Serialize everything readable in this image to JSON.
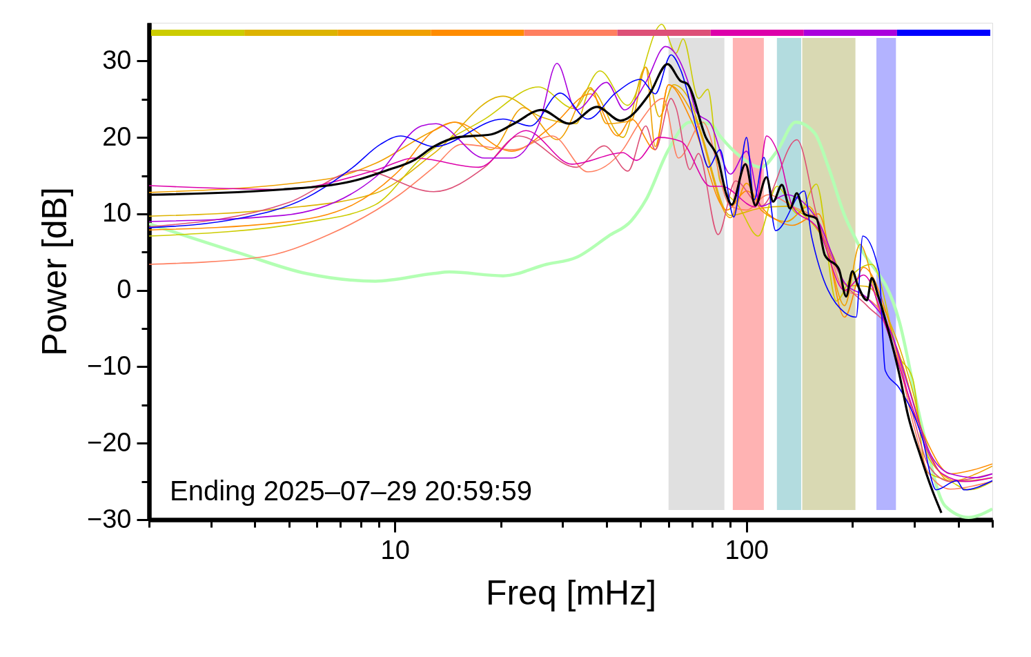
{
  "chart_data": {
    "type": "line",
    "xlabel": "Freq [mHz]",
    "ylabel": "Power [dB]",
    "log": "x",
    "xlim": [
      2,
      500
    ],
    "ylim": [
      -30,
      35
    ],
    "xticks": [
      {
        "value": 2,
        "label": null
      },
      {
        "value": 3,
        "label": null
      },
      {
        "value": 4,
        "label": null
      },
      {
        "value": 5,
        "label": null
      },
      {
        "value": 6,
        "label": null
      },
      {
        "value": 7,
        "label": null
      },
      {
        "value": 8,
        "label": null
      },
      {
        "value": 9,
        "label": null
      },
      10,
      {
        "value": 20,
        "label": null
      },
      {
        "value": 30,
        "label": null
      },
      {
        "value": 40,
        "label": null
      },
      {
        "value": 50,
        "label": null
      },
      {
        "value": 60,
        "label": null
      },
      {
        "value": 70,
        "label": null
      },
      {
        "value": 80,
        "label": null
      },
      {
        "value": 90,
        "label": null
      },
      100,
      {
        "value": 200,
        "label": null
      },
      {
        "value": 300,
        "label": null
      },
      {
        "value": 400,
        "label": null
      },
      {
        "value": 500,
        "label": null
      }
    ],
    "yticks": [
      {
        "value": -30,
        "label": "−30"
      },
      {
        "value": -25,
        "label": null
      },
      {
        "value": -20,
        "label": "−20"
      },
      {
        "value": -15,
        "label": null
      },
      {
        "value": -10,
        "label": "−10"
      },
      {
        "value": -5,
        "label": null
      },
      0,
      {
        "value": 5,
        "label": null
      },
      10,
      {
        "value": 15,
        "label": null
      },
      20,
      {
        "value": 25,
        "label": null
      },
      30
    ],
    "grid": false,
    "marker": "none",
    "line_style": "solid",
    "annotations": [
      "Ending 2025–07–29 20:59:59"
    ],
    "bands": [
      {
        "axis": "x",
        "from": 60,
        "to": 86.5,
        "color": "#e0e0e0"
      },
      {
        "axis": "x",
        "from": 91.4,
        "to": 112,
        "color": "#ffb3b3"
      },
      {
        "axis": "x",
        "from": 122,
        "to": 143,
        "color": "#b3dcdf"
      },
      {
        "axis": "x",
        "from": 144,
        "to": 204,
        "color": "#d9d9b3"
      },
      {
        "axis": "x",
        "from": 234,
        "to": 266,
        "color": "#b3b3ff"
      }
    ],
    "series": [
      {
        "color": "#b3ffb3",
        "x": [
          2,
          3.6,
          5.6,
          8.8,
          12.9,
          14.3,
          20.3,
          27,
          32.8,
          40.5,
          47,
          51.7,
          60,
          69,
          79,
          84,
          96,
          110,
          122,
          138,
          156,
          171,
          190,
          207,
          272,
          315,
          367,
          428,
          500
        ],
        "values": [
          8.7,
          4.9,
          2.2,
          1.2,
          2.2,
          2.4,
          1.9,
          3.4,
          4.3,
          7.1,
          9.1,
          11.8,
          18.4,
          22,
          21.8,
          20.2,
          17.5,
          16.1,
          18.2,
          22,
          20.6,
          16.1,
          9.8,
          6.2,
          -4.1,
          -17.7,
          -28.2,
          -29.7,
          -28.6
        ]
      },
      {
        "color": "#cccc00",
        "x": [
          2,
          5.6,
          8.8,
          11.9,
          18,
          25.6,
          32.3,
          38.3,
          45.9,
          57.4,
          63,
          66,
          73,
          77.6,
          84,
          95,
          108,
          122,
          140,
          158,
          180,
          200,
          227,
          272,
          297,
          325,
          380,
          428,
          500
        ],
        "values": [
          7.1,
          8.9,
          11.2,
          17.3,
          22.4,
          26.6,
          23.8,
          28.7,
          24.2,
          34.8,
          31,
          32.9,
          25.1,
          26.3,
          14.3,
          11,
          7.1,
          13.6,
          10,
          13.9,
          -1.4,
          2,
          3.4,
          -8.7,
          -11.6,
          -23.7,
          -25,
          -26.1,
          -25
        ]
      },
      {
        "color": "#ddb300",
        "x": [
          2,
          4.8,
          8.8,
          12.9,
          20.3,
          26,
          32.8,
          36,
          44.5,
          51.7,
          56.5,
          62,
          69,
          74,
          90,
          108,
          130,
          146,
          176,
          192,
          220,
          260,
          300,
          330,
          400,
          500
        ],
        "values": [
          9.7,
          10.7,
          12.7,
          17.9,
          25.4,
          22.7,
          21.8,
          26.3,
          20,
          29.2,
          22.7,
          26.9,
          24.8,
          20.9,
          9.8,
          10.7,
          11,
          9.8,
          4.6,
          0.7,
          0.5,
          -5,
          -14,
          -22,
          -25,
          -24.5
        ]
      },
      {
        "color": "#f0a000",
        "x": [
          2,
          6.5,
          8.8,
          12.9,
          14.8,
          18.8,
          23.2,
          29,
          36,
          40,
          47,
          51.7,
          55,
          60,
          71,
          90,
          100,
          110,
          130,
          150,
          170,
          190,
          210,
          240,
          270,
          300,
          330,
          380,
          450,
          500
        ],
        "values": [
          12.8,
          14.6,
          16.6,
          20.9,
          22,
          18.4,
          23.9,
          19.7,
          26.5,
          21.8,
          22.2,
          29.2,
          18.8,
          26.9,
          22.7,
          9.5,
          14,
          10.5,
          9,
          11,
          5,
          -2,
          6,
          -3,
          -8,
          -15,
          -21,
          -25,
          -24,
          -23
        ]
      },
      {
        "color": "#ff8c00",
        "x": [
          2,
          4.8,
          7.6,
          10.3,
          12.9,
          14.8,
          21.5,
          28,
          36,
          43,
          47,
          55,
          60,
          70,
          88,
          100,
          115,
          135,
          160,
          190,
          215,
          250,
          280,
          320,
          380,
          440,
          500
        ],
        "values": [
          7.9,
          8.9,
          11.2,
          15.7,
          20.9,
          22,
          18.2,
          21.5,
          25.7,
          20.2,
          22.4,
          18.4,
          26.9,
          22,
          10.5,
          13,
          10,
          8.5,
          10,
          -3.5,
          3,
          -3,
          -12,
          -19,
          -24,
          -23.5,
          -22.7
        ]
      },
      {
        "color": "#ff7f60",
        "x": [
          2,
          4.1,
          6.5,
          10.3,
          12.9,
          15.5,
          21.8,
          28,
          35.4,
          44.5,
          49.4,
          58,
          64,
          75,
          90,
          100,
          115,
          135,
          160,
          190,
          220,
          260,
          300,
          330,
          380,
          450,
          500
        ],
        "values": [
          3.4,
          4.3,
          7.3,
          12.5,
          16.1,
          19.1,
          18.4,
          20.2,
          15.5,
          18.4,
          21.8,
          25.1,
          17.3,
          22,
          11,
          10.5,
          12.5,
          11,
          9,
          0,
          -1,
          -6,
          -18,
          -24,
          -26,
          -25.5,
          -25
        ]
      },
      {
        "color": "#dd5077",
        "x": [
          2,
          5,
          8,
          12.9,
          18,
          22.5,
          32.8,
          39.4,
          46,
          51.7,
          55,
          61,
          63,
          69,
          73,
          83,
          93,
          110,
          139,
          160,
          190,
          220,
          260,
          300,
          330,
          380,
          450,
          500
        ],
        "values": [
          8.3,
          11.5,
          15.7,
          12.9,
          16.1,
          20.2,
          16.1,
          18.9,
          15.6,
          21.5,
          18.4,
          25.1,
          23.9,
          15.8,
          17.9,
          7.3,
          14.3,
          11,
          19.7,
          9,
          1,
          -2,
          -6,
          -17,
          -23,
          -25,
          -24.5,
          -24
        ]
      },
      {
        "color": "#dd00aa",
        "x": [
          2,
          4.8,
          8.8,
          11.4,
          17.3,
          23.6,
          31.9,
          44.5,
          48.6,
          56.5,
          65,
          79,
          85,
          106,
          114,
          124,
          135,
          160,
          190,
          215,
          250,
          290,
          320,
          360,
          420,
          500
        ],
        "values": [
          13.7,
          13.2,
          15.7,
          17.3,
          16.1,
          20.9,
          16.5,
          18,
          17,
          20,
          19.5,
          13.6,
          13.6,
          10.9,
          20.2,
          17.5,
          11,
          8,
          0,
          2,
          -5,
          -14,
          -20,
          -24,
          -25,
          -24.5
        ]
      },
      {
        "color": "#aa00dd",
        "x": [
          2,
          4.8,
          8.8,
          11.9,
          13.1,
          18,
          21.5,
          25.8,
          28.9,
          32.8,
          40,
          45,
          51.7,
          58.8,
          67.9,
          72,
          79,
          90,
          100,
          110,
          130,
          160,
          190,
          220,
          260,
          290,
          330,
          380,
          450,
          500
        ],
        "values": [
          9,
          9.8,
          14.8,
          21.5,
          21.8,
          17.3,
          17.3,
          22,
          29.7,
          23.6,
          27.2,
          23.6,
          27.2,
          31.9,
          27.5,
          23.3,
          21.8,
          15.2,
          18.2,
          11,
          12.5,
          9,
          1,
          -1,
          -6,
          -13,
          -21,
          -24,
          -24.5,
          -24
        ]
      },
      {
        "color": "#0000ff",
        "x": [
          2,
          3.6,
          5.6,
          7.6,
          9.1,
          10.4,
          12.9,
          20.3,
          24.3,
          29.5,
          35.4,
          42.4,
          50,
          55,
          61,
          65,
          73,
          78,
          84,
          92,
          100,
          105,
          112,
          121,
          146,
          153,
          190,
          205,
          214,
          238,
          248,
          272,
          315,
          346,
          396,
          415,
          500
        ],
        "values": [
          8.2,
          9.4,
          12.1,
          16.1,
          19.1,
          20.2,
          18.8,
          22.4,
          21.5,
          25.8,
          22.4,
          25.8,
          27.6,
          25.7,
          30.8,
          28.8,
          20.2,
          16.1,
          18.4,
          9.6,
          20,
          11.8,
          17.4,
          7.8,
          13,
          7.1,
          -2.9,
          -3.5,
          7.1,
          2.5,
          -10.5,
          -12.8,
          -19.1,
          -26.1,
          -24.9,
          -26.1,
          -24.9
        ]
      },
      {
        "color": "#000000",
        "x": [
          2,
          4.8,
          7.6,
          9.5,
          11.4,
          12.9,
          15,
          18.8,
          21.8,
          26.1,
          31.3,
          37.6,
          43.8,
          53,
          59.6,
          64.9,
          67.9,
          76.6,
          82.8,
          87.7,
          90.7,
          99.3,
          106,
          114,
          119,
          126,
          133,
          139,
          146,
          158,
          167,
          183,
          192,
          200,
          207,
          220,
          227,
          237,
          248,
          272,
          288,
          312,
          337,
          358
        ],
        "values": [
          12.5,
          13.2,
          14.3,
          15.7,
          17.1,
          18.8,
          20,
          20.4,
          21.8,
          23.6,
          21.8,
          24,
          22.2,
          25.7,
          29.6,
          27.4,
          27,
          20,
          17.3,
          12.5,
          11.2,
          16.5,
          11.1,
          14.8,
          11.6,
          13.8,
          10.7,
          12.7,
          10,
          9.4,
          4.6,
          2.8,
          -0.8,
          2.5,
          0.7,
          -1.3,
          1.6,
          -0.8,
          -3.8,
          -11,
          -16.4,
          -21.6,
          -26.1,
          -29.1
        ]
      }
    ]
  }
}
